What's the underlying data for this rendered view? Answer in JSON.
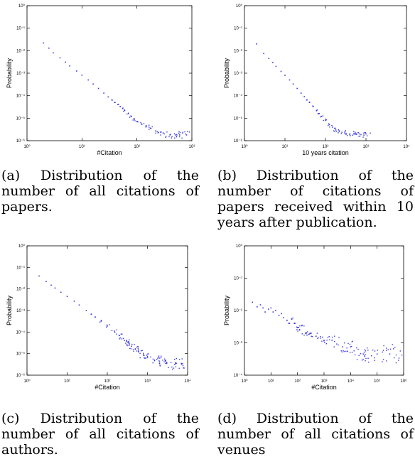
{
  "chart_data": [
    {
      "type": "scatter",
      "panel": "a",
      "title": "",
      "xlabel": "#Citation",
      "ylabel": "Probability",
      "xscale": "log",
      "yscale": "log",
      "xlim": [
        1,
        1000
      ],
      "ylim": [
        1e-06,
        1
      ],
      "x_ticks": [
        1,
        10,
        100,
        1000
      ],
      "y_ticks": [
        1e-06,
        1e-05,
        0.0001,
        0.001,
        0.01,
        0.1,
        1
      ],
      "x_tick_labels": [
        "10⁰",
        "10¹",
        "10²",
        "10³"
      ],
      "y_tick_labels": [
        "10⁻⁶",
        "10⁻⁵",
        "10⁻⁴",
        "10⁻³",
        "10⁻²",
        "10⁻¹",
        "10⁰"
      ],
      "grid": false,
      "color": "#3a3ae0",
      "series": [
        {
          "values": [
            [
              2,
              0.022
            ],
            [
              2.5,
              0.013
            ],
            [
              3,
              0.008
            ],
            [
              4,
              0.0048
            ],
            [
              5,
              0.0031
            ],
            [
              6,
              0.0021
            ],
            [
              8,
              0.00125
            ],
            [
              10,
              0.00082
            ],
            [
              13,
              0.0005
            ],
            [
              16,
              0.00033
            ],
            [
              20,
              0.00021
            ],
            [
              25,
              0.00013
            ],
            [
              30,
              8.8e-05
            ],
            [
              35,
              6.5e-05
            ],
            [
              40,
              5e-05
            ],
            [
              45,
              4e-05
            ],
            [
              50,
              3.3e-05
            ],
            [
              55,
              2.7e-05
            ],
            [
              60,
              2.2e-05
            ],
            [
              70,
              1.6e-05
            ],
            [
              80,
              1.2e-05
            ],
            [
              90,
              9e-06
            ],
            [
              100,
              7e-06
            ],
            [
              120,
              5.5e-06
            ],
            [
              150,
              4.5e-06
            ],
            [
              180,
              3.5e-06
            ],
            [
              220,
              2.7e-06
            ],
            [
              300,
              2.2e-06
            ],
            [
              400,
              1.8e-06
            ],
            [
              500,
              1.8e-06
            ],
            [
              600,
              1.8e-06
            ],
            [
              800,
              1.8e-06
            ]
          ]
        }
      ]
    },
    {
      "type": "scatter",
      "panel": "b",
      "title": "",
      "xlabel": "10 years citation",
      "ylabel": "Probability",
      "xscale": "log",
      "yscale": "log",
      "xlim": [
        1,
        10000
      ],
      "ylim": [
        1e-06,
        1
      ],
      "x_ticks": [
        1,
        10,
        100,
        1000,
        10000
      ],
      "y_ticks": [
        1e-06,
        1e-05,
        0.0001,
        0.001,
        0.01,
        0.1,
        1
      ],
      "x_tick_labels": [
        "10⁰",
        "10¹",
        "10²",
        "10³",
        "10⁴"
      ],
      "y_tick_labels": [
        "10⁻⁶",
        "10⁻⁵",
        "10⁻⁴",
        "10⁻³",
        "10⁻²",
        "10⁻¹",
        "10⁰"
      ],
      "grid": false,
      "color": "#3a3ae0",
      "series": [
        {
          "values": [
            [
              2,
              0.02
            ],
            [
              3,
              0.0075
            ],
            [
              4,
              0.0045
            ],
            [
              5,
              0.003
            ],
            [
              6,
              0.002
            ],
            [
              8,
              0.0012
            ],
            [
              10,
              0.0008
            ],
            [
              13,
              0.0005
            ],
            [
              16,
              0.00033
            ],
            [
              20,
              0.00021
            ],
            [
              25,
              0.00013
            ],
            [
              30,
              9e-05
            ],
            [
              35,
              6.5e-05
            ],
            [
              40,
              5e-05
            ],
            [
              50,
              3.3e-05
            ],
            [
              60,
              2.2e-05
            ],
            [
              70,
              1.6e-05
            ],
            [
              80,
              1.2e-05
            ],
            [
              100,
              8e-06
            ],
            [
              120,
              5.5e-06
            ],
            [
              150,
              4e-06
            ],
            [
              180,
              3e-06
            ],
            [
              220,
              2.6e-06
            ],
            [
              300,
              2.2e-06
            ],
            [
              400,
              2e-06
            ],
            [
              500,
              2e-06
            ],
            [
              700,
              2e-06
            ],
            [
              1000,
              2e-06
            ]
          ]
        }
      ]
    },
    {
      "type": "scatter",
      "panel": "c",
      "title": "",
      "xlabel": "#Citation",
      "ylabel": "Probability",
      "xscale": "log",
      "yscale": "log",
      "xlim": [
        1,
        10000
      ],
      "ylim": [
        1e-06,
        1
      ],
      "x_ticks": [
        1,
        10,
        100,
        1000,
        10000
      ],
      "y_ticks": [
        1e-06,
        1e-05,
        0.0001,
        0.001,
        0.01,
        0.1,
        1
      ],
      "x_tick_labels": [
        "10⁰",
        "10¹",
        "10²",
        "10³",
        "10⁴"
      ],
      "y_tick_labels": [
        "10⁻⁶",
        "10⁻⁵",
        "10⁻⁴",
        "10⁻³",
        "10⁻²",
        "10⁻¹",
        "10⁰"
      ],
      "grid": false,
      "color": "#3a3ae0",
      "series": [
        {
          "values": [
            [
              2,
              0.04
            ],
            [
              3,
              0.022
            ],
            [
              4,
              0.015
            ],
            [
              5,
              0.011
            ],
            [
              7,
              0.007
            ],
            [
              10,
              0.0045
            ],
            [
              15,
              0.0027
            ],
            [
              20,
              0.0018
            ],
            [
              30,
              0.001
            ],
            [
              40,
              0.00068
            ],
            [
              50,
              0.0005
            ],
            [
              70,
              0.00032
            ],
            [
              100,
              0.00019
            ],
            [
              150,
              0.00011
            ],
            [
              200,
              7e-05
            ],
            [
              250,
              5e-05
            ],
            [
              300,
              3.8e-05
            ],
            [
              350,
              3e-05
            ],
            [
              400,
              2.2e-05
            ],
            [
              500,
              1.6e-05
            ],
            [
              600,
              1.2e-05
            ],
            [
              800,
              8.5e-06
            ],
            [
              1000,
              6.5e-06
            ],
            [
              1500,
              5e-06
            ],
            [
              2000,
              3.5e-06
            ],
            [
              3000,
              3.5e-06
            ],
            [
              5000,
              3.5e-06
            ],
            [
              7000,
              3.5e-06
            ]
          ]
        }
      ]
    },
    {
      "type": "scatter",
      "panel": "d",
      "title": "",
      "xlabel": "#Citation",
      "ylabel": "Probability",
      "xscale": "log",
      "yscale": "log",
      "xlim": [
        1,
        1000000
      ],
      "ylim": [
        0.0001,
        1
      ],
      "x_ticks": [
        1,
        10,
        100,
        1000,
        10000,
        100000,
        1000000
      ],
      "y_ticks": [
        0.0001,
        0.001,
        0.01,
        0.1,
        1
      ],
      "x_tick_labels": [
        "10⁰",
        "10¹",
        "10²",
        "10³",
        "10⁴",
        "10⁵",
        "10⁶"
      ],
      "y_tick_labels": [
        "10⁻⁴",
        "10⁻³",
        "10⁻²",
        "10⁻¹",
        "10⁰"
      ],
      "grid": false,
      "color": "#3a3ae0",
      "series": [
        {
          "values": [
            [
              2,
              0.018
            ],
            [
              3,
              0.013
            ],
            [
              4,
              0.015
            ],
            [
              5,
              0.012
            ],
            [
              6,
              0.009
            ],
            [
              8,
              0.011
            ],
            [
              10,
              0.012
            ],
            [
              12,
              0.009
            ],
            [
              15,
              0.01
            ],
            [
              20,
              0.007
            ],
            [
              25,
              0.008
            ],
            [
              30,
              0.006
            ],
            [
              40,
              0.005
            ],
            [
              50,
              0.004
            ],
            [
              60,
              0.0055
            ],
            [
              80,
              0.004
            ],
            [
              100,
              0.003
            ],
            [
              120,
              0.0025
            ],
            [
              150,
              0.0035
            ],
            [
              200,
              0.002
            ],
            [
              300,
              0.002
            ],
            [
              500,
              0.0016
            ],
            [
              1000,
              0.0012
            ],
            [
              2000,
              0.0012
            ],
            [
              5000,
              0.00075
            ],
            [
              10000,
              0.00075
            ],
            [
              30000,
              0.00045
            ],
            [
              100000,
              0.00045
            ],
            [
              300000,
              0.00045
            ]
          ]
        }
      ]
    }
  ],
  "captions": [
    {
      "id": "a",
      "text": "(a) Distribution of the number of all citations of papers."
    },
    {
      "id": "b",
      "text": "(b) Distribution of the number of citations of papers received within 10 years after publication."
    },
    {
      "id": "c",
      "text": "(c) Distribution of the number of all citations of authors."
    },
    {
      "id": "d",
      "text": "(d) Distribution of the number of all citations of venues"
    }
  ]
}
